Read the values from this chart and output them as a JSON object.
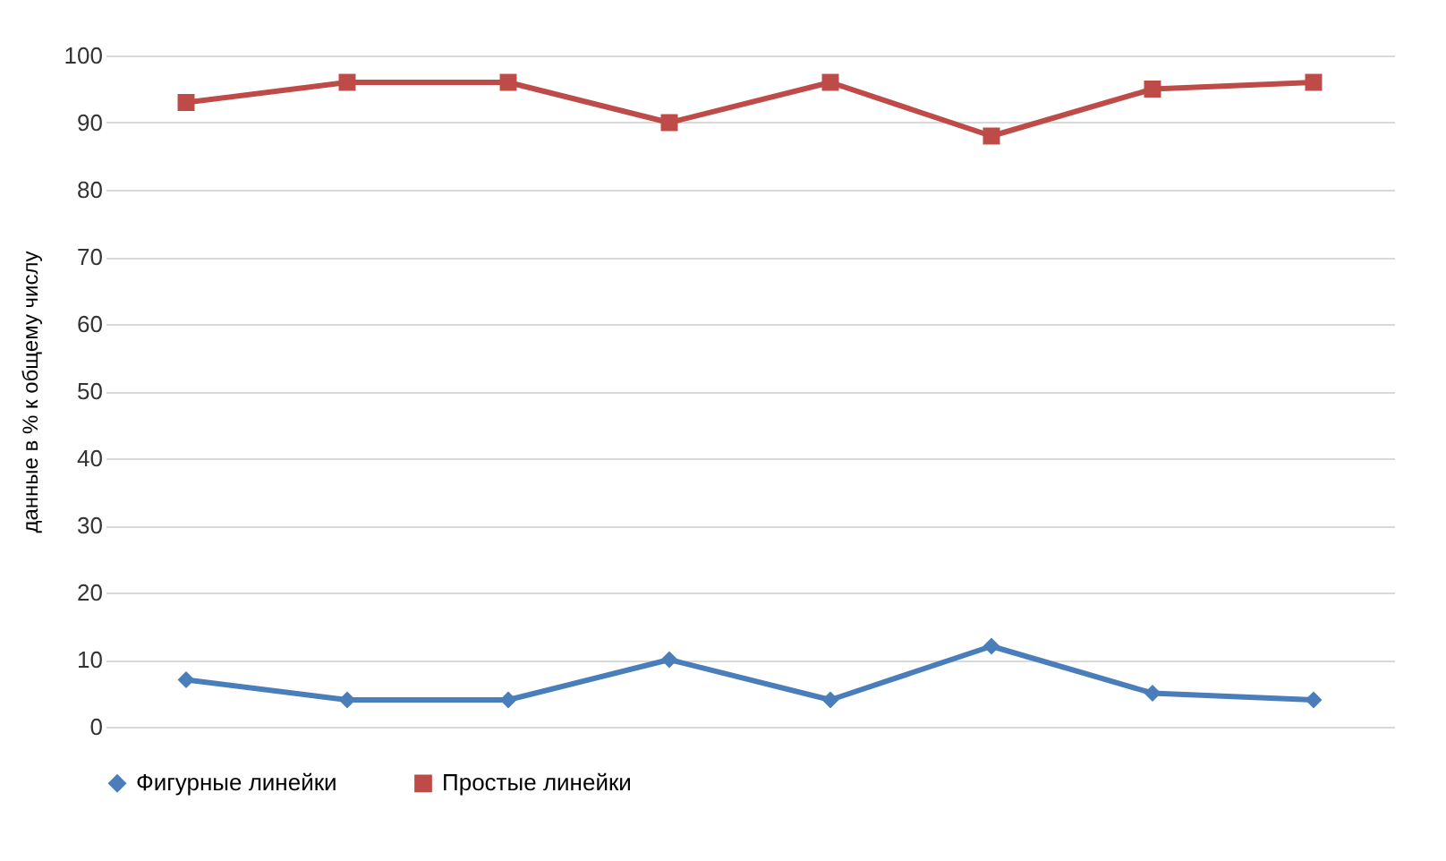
{
  "chart_data": {
    "type": "line",
    "categories": [
      null,
      null,
      null,
      null,
      null,
      null,
      null,
      null
    ],
    "ylabel": "данные в % к общему числу",
    "series": [
      {
        "name": "Фигурные линейки",
        "color": "#4a7ebb",
        "marker": "diamond",
        "values": [
          7,
          4,
          4,
          10,
          4,
          12,
          5,
          4
        ]
      },
      {
        "name": "Простые линейки",
        "color": "#be4b48",
        "marker": "square",
        "values": [
          93,
          96,
          96,
          90,
          96,
          88,
          95,
          96
        ]
      }
    ],
    "ylim": [
      0,
      100
    ],
    "yticks": [
      0,
      10,
      20,
      30,
      40,
      50,
      60,
      70,
      80,
      90,
      100
    ],
    "grid": "y",
    "legend": "bottom"
  }
}
